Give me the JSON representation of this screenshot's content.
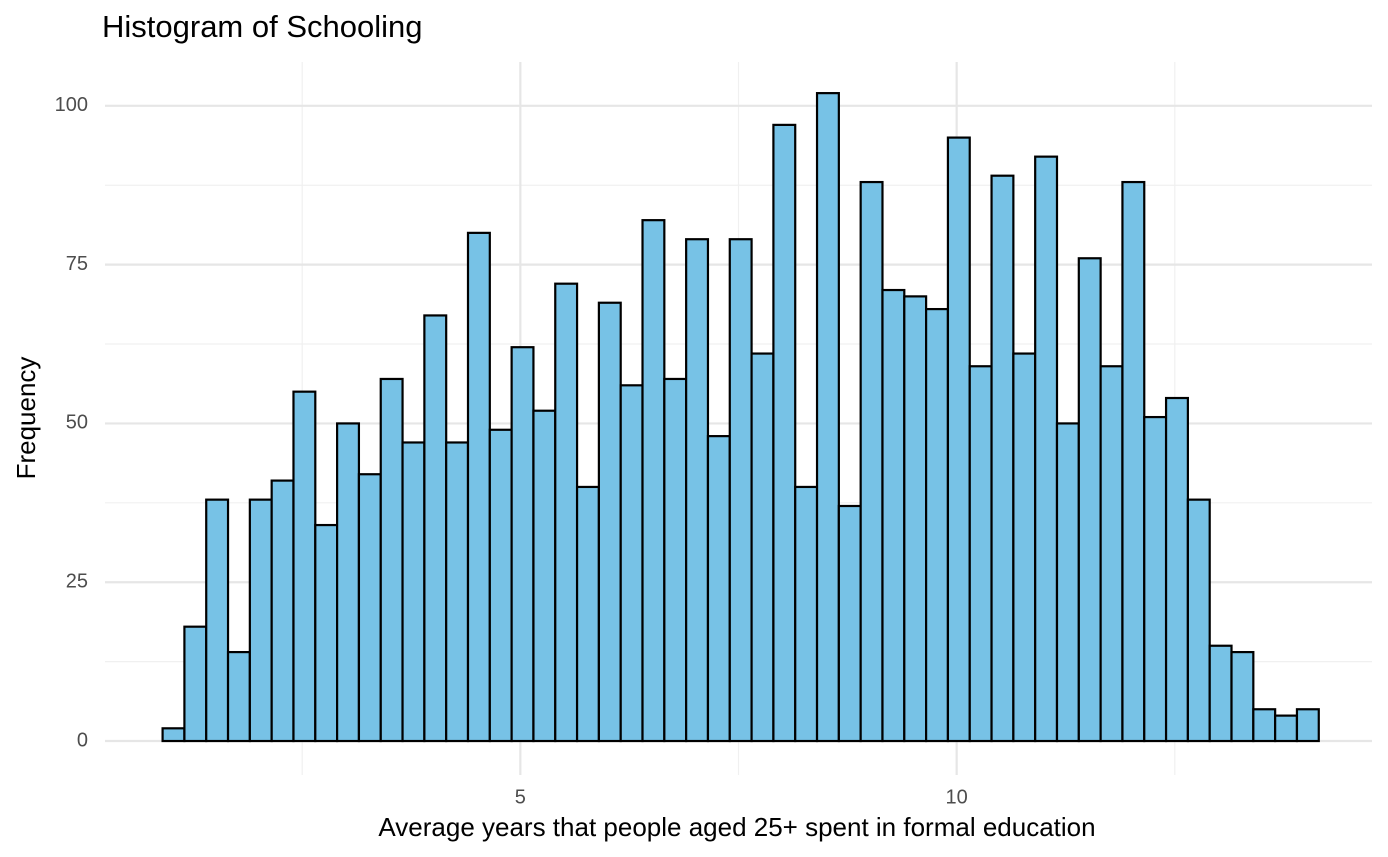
{
  "chart_data": {
    "type": "histogram",
    "title": "Histogram of Schooling",
    "x_label": "Average years that people aged 25+ spent in formal education",
    "y_label": "Frequency",
    "bins": [
      0.9,
      1.15,
      1.4,
      1.65,
      1.9,
      2.15,
      2.4,
      2.65,
      2.9,
      3.15,
      3.4,
      3.65,
      3.9,
      4.15,
      4.4,
      4.65,
      4.9,
      5.15,
      5.4,
      5.65,
      5.9,
      6.15,
      6.4,
      6.65,
      6.9,
      7.15,
      7.4,
      7.65,
      7.9,
      8.15,
      8.4,
      8.65,
      8.9,
      9.15,
      9.4,
      9.65,
      9.9,
      10.15,
      10.4,
      10.65,
      10.9,
      11.15,
      11.4,
      11.65,
      11.9,
      12.15,
      12.4,
      12.65,
      12.9,
      13.15,
      13.4,
      13.65,
      13.9,
      14.15
    ],
    "values": [
      2,
      18,
      38,
      14,
      38,
      41,
      55,
      34,
      50,
      42,
      57,
      47,
      67,
      47,
      80,
      49,
      62,
      52,
      72,
      40,
      69,
      56,
      82,
      57,
      79,
      48,
      79,
      61,
      97,
      40,
      102,
      37,
      88,
      71,
      70,
      68,
      95,
      59,
      89,
      61,
      92,
      50,
      76,
      59,
      88,
      51,
      54,
      38,
      15,
      14,
      5,
      4,
      5
    ],
    "color": "#77c2e6",
    "edge_color": "#000000",
    "xlim": [
      0.24,
      14.76
    ],
    "xticks": [
      5,
      10
    ],
    "xminor_ticks": [
      2.5,
      7.5,
      12.5
    ],
    "ylim": [
      -5.35,
      106.9
    ],
    "yticks": [
      0,
      25,
      50,
      75,
      100
    ],
    "yminor_ticks": [
      12.5,
      37.5,
      62.5,
      87.5
    ],
    "grid": true
  }
}
